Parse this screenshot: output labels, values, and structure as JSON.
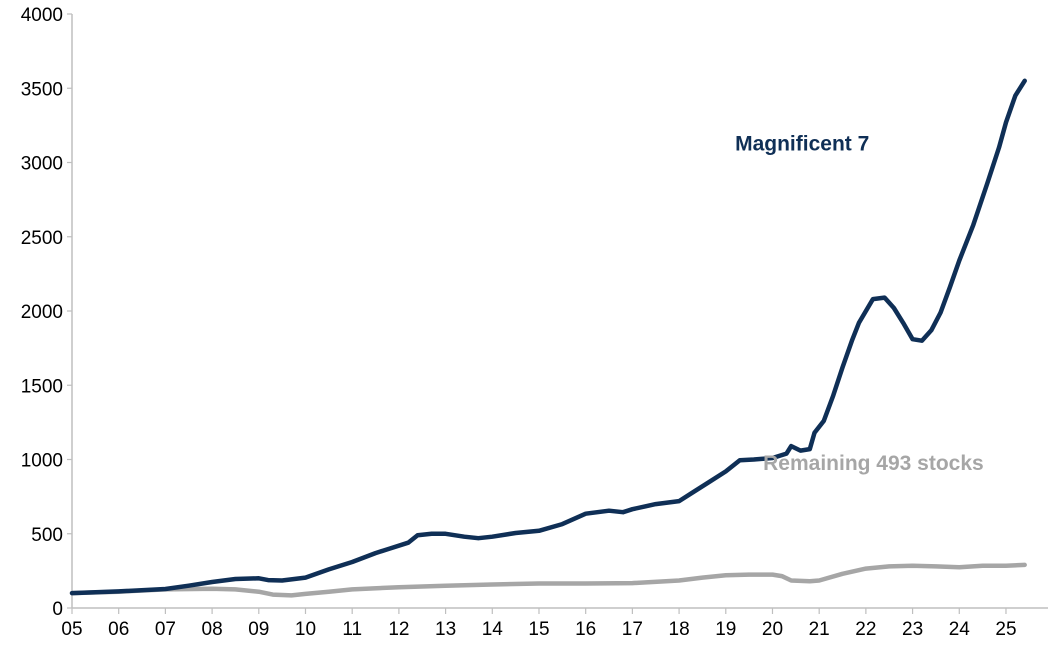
{
  "chart_data": {
    "type": "line",
    "title": "",
    "xlabel": "",
    "ylabel": "",
    "ylim": [
      0,
      4000
    ],
    "yticks": [
      0,
      500,
      1000,
      1500,
      2000,
      2500,
      3000,
      3500,
      4000
    ],
    "xlim": [
      2005,
      2025.9
    ],
    "xticks": [
      "05",
      "06",
      "07",
      "08",
      "09",
      "10",
      "11",
      "12",
      "13",
      "14",
      "15",
      "16",
      "17",
      "18",
      "19",
      "20",
      "21",
      "22",
      "23",
      "24",
      "25"
    ],
    "grid": false,
    "legend": "none (series labeled inline)",
    "series": [
      {
        "name": "Magnificent 7",
        "color": "#0f2f56",
        "label_anchor": {
          "x": 2019.2,
          "y": 3080
        },
        "points": [
          [
            2005.0,
            100
          ],
          [
            2006.0,
            112
          ],
          [
            2007.0,
            128
          ],
          [
            2007.5,
            150
          ],
          [
            2008.0,
            175
          ],
          [
            2008.5,
            195
          ],
          [
            2009.0,
            200
          ],
          [
            2009.2,
            188
          ],
          [
            2009.5,
            185
          ],
          [
            2010.0,
            205
          ],
          [
            2010.5,
            260
          ],
          [
            2011.0,
            310
          ],
          [
            2011.5,
            370
          ],
          [
            2011.8,
            400
          ],
          [
            2012.2,
            440
          ],
          [
            2012.4,
            490
          ],
          [
            2012.7,
            500
          ],
          [
            2013.0,
            500
          ],
          [
            2013.4,
            480
          ],
          [
            2013.7,
            470
          ],
          [
            2014.0,
            480
          ],
          [
            2014.5,
            505
          ],
          [
            2015.0,
            520
          ],
          [
            2015.5,
            565
          ],
          [
            2016.0,
            635
          ],
          [
            2016.5,
            655
          ],
          [
            2016.8,
            645
          ],
          [
            2017.0,
            665
          ],
          [
            2017.5,
            700
          ],
          [
            2018.0,
            720
          ],
          [
            2018.3,
            780
          ],
          [
            2018.6,
            840
          ],
          [
            2019.0,
            920
          ],
          [
            2019.3,
            995
          ],
          [
            2019.6,
            1000
          ],
          [
            2020.0,
            1010
          ],
          [
            2020.3,
            1040
          ],
          [
            2020.4,
            1090
          ],
          [
            2020.6,
            1060
          ],
          [
            2020.8,
            1070
          ],
          [
            2020.9,
            1180
          ],
          [
            2021.1,
            1260
          ],
          [
            2021.3,
            1430
          ],
          [
            2021.5,
            1620
          ],
          [
            2021.7,
            1800
          ],
          [
            2021.85,
            1920
          ],
          [
            2022.0,
            2000
          ],
          [
            2022.15,
            2080
          ],
          [
            2022.4,
            2090
          ],
          [
            2022.6,
            2020
          ],
          [
            2022.8,
            1920
          ],
          [
            2023.0,
            1810
          ],
          [
            2023.2,
            1800
          ],
          [
            2023.4,
            1870
          ],
          [
            2023.6,
            1990
          ],
          [
            2023.8,
            2160
          ],
          [
            2024.0,
            2340
          ],
          [
            2024.3,
            2580
          ],
          [
            2024.6,
            2860
          ],
          [
            2024.85,
            3100
          ],
          [
            2025.0,
            3270
          ],
          [
            2025.2,
            3450
          ],
          [
            2025.4,
            3550
          ]
        ]
      },
      {
        "name": "Remaining 493 stocks",
        "color": "#a6a6a6",
        "label_anchor": {
          "x": 2019.8,
          "y": 930
        },
        "points": [
          [
            2005.0,
            100
          ],
          [
            2006.0,
            110
          ],
          [
            2007.0,
            125
          ],
          [
            2008.0,
            130
          ],
          [
            2008.5,
            125
          ],
          [
            2009.0,
            110
          ],
          [
            2009.3,
            90
          ],
          [
            2009.7,
            85
          ],
          [
            2010.0,
            95
          ],
          [
            2010.5,
            110
          ],
          [
            2011.0,
            125
          ],
          [
            2012.0,
            140
          ],
          [
            2013.0,
            150
          ],
          [
            2014.0,
            158
          ],
          [
            2015.0,
            165
          ],
          [
            2016.0,
            165
          ],
          [
            2017.0,
            168
          ],
          [
            2018.0,
            185
          ],
          [
            2018.5,
            205
          ],
          [
            2019.0,
            220
          ],
          [
            2019.5,
            225
          ],
          [
            2020.0,
            225
          ],
          [
            2020.2,
            215
          ],
          [
            2020.4,
            185
          ],
          [
            2020.8,
            180
          ],
          [
            2021.0,
            185
          ],
          [
            2021.5,
            230
          ],
          [
            2022.0,
            265
          ],
          [
            2022.5,
            280
          ],
          [
            2023.0,
            285
          ],
          [
            2023.5,
            280
          ],
          [
            2024.0,
            275
          ],
          [
            2024.5,
            285
          ],
          [
            2025.0,
            285
          ],
          [
            2025.4,
            290
          ]
        ]
      }
    ]
  }
}
